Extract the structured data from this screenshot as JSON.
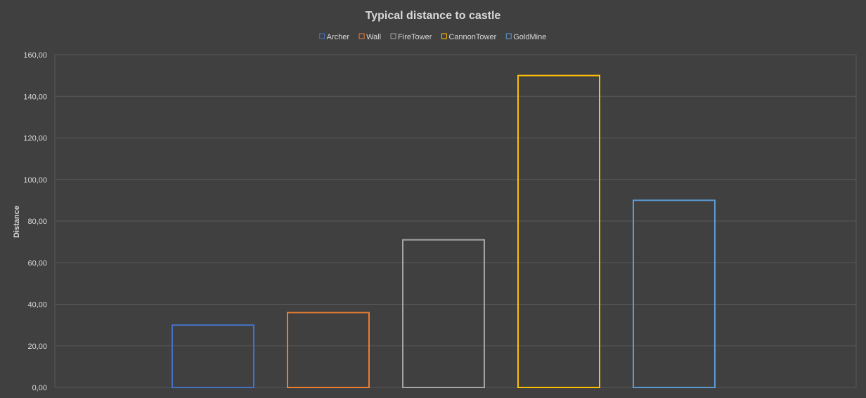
{
  "chart_data": {
    "type": "bar",
    "title": "Typical distance to castle",
    "xlabel": "",
    "ylabel": "Distance",
    "ylim": [
      0,
      160
    ],
    "y_ticks": [
      0,
      20,
      40,
      60,
      80,
      100,
      120,
      140,
      160
    ],
    "y_tick_labels": [
      "0,00",
      "20,00",
      "40,00",
      "60,00",
      "80,00",
      "100,00",
      "120,00",
      "140,00",
      "160,00"
    ],
    "grid": true,
    "legend_position": "top",
    "series": [
      {
        "name": "Archer",
        "value": 30,
        "color": "#4472c4"
      },
      {
        "name": "Wall",
        "value": 36,
        "color": "#ed7d31"
      },
      {
        "name": "FireTower",
        "value": 71,
        "color": "#a5a5a5"
      },
      {
        "name": "CannonTower",
        "value": 150,
        "color": "#ffc000"
      },
      {
        "name": "GoldMine",
        "value": 90,
        "color": "#5b9bd5"
      }
    ]
  },
  "colors": {
    "background": "#404040",
    "gridline": "#595959",
    "text": "#d9d9d9"
  }
}
